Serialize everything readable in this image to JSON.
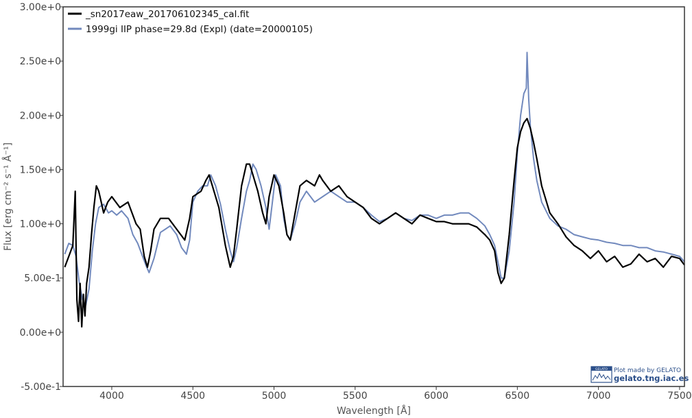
{
  "chart_data": {
    "type": "line",
    "xlabel": "Wavelength [Å]",
    "ylabel": "Flux [erg cm⁻² s⁻¹ Å⁻¹]",
    "xlim": [
      3700,
      7530
    ],
    "ylim": [
      -0.5,
      3.0
    ],
    "x_ticks": [
      4000,
      4500,
      5000,
      5500,
      6000,
      6500,
      7000,
      7500
    ],
    "x_tick_labels": [
      "4000",
      "4500",
      "5000",
      "5500",
      "6000",
      "6500",
      "7000",
      "7500"
    ],
    "y_ticks": [
      -0.5,
      0.0,
      0.5,
      1.0,
      1.5,
      2.0,
      2.5,
      3.0
    ],
    "y_tick_labels": [
      "-5.00e-1",
      "0.00e+0",
      "5.00e-1",
      "1.00e+0",
      "1.50e+0",
      "2.00e+0",
      "2.50e+0",
      "3.00e+0"
    ],
    "grid": false,
    "legend_position": "top-left",
    "series": [
      {
        "name": "_sn2017eaw_201706102345_cal.fit",
        "color": "#000000",
        "x": [
          3710,
          3735,
          3760,
          3775,
          3785,
          3795,
          3805,
          3815,
          3825,
          3835,
          3845,
          3860,
          3875,
          3890,
          3905,
          3920,
          3935,
          3950,
          3975,
          4000,
          4050,
          4100,
          4150,
          4175,
          4200,
          4220,
          4240,
          4260,
          4300,
          4350,
          4400,
          4450,
          4480,
          4500,
          4550,
          4580,
          4600,
          4630,
          4660,
          4700,
          4730,
          4750,
          4770,
          4800,
          4830,
          4850,
          4870,
          4900,
          4930,
          4950,
          4970,
          5000,
          5030,
          5060,
          5080,
          5100,
          5130,
          5160,
          5200,
          5250,
          5280,
          5300,
          5350,
          5400,
          5450,
          5500,
          5550,
          5600,
          5650,
          5700,
          5750,
          5800,
          5850,
          5900,
          5950,
          6000,
          6050,
          6100,
          6150,
          6200,
          6250,
          6300,
          6330,
          6360,
          6380,
          6400,
          6420,
          6450,
          6480,
          6500,
          6520,
          6540,
          6560,
          6580,
          6600,
          6620,
          6650,
          6700,
          6750,
          6800,
          6850,
          6900,
          6950,
          7000,
          7050,
          7100,
          7150,
          7200,
          7250,
          7300,
          7350,
          7400,
          7450,
          7500,
          7530
        ],
        "y": [
          0.6,
          0.7,
          0.8,
          1.3,
          0.3,
          0.1,
          0.45,
          0.05,
          0.35,
          0.15,
          0.45,
          0.6,
          0.9,
          1.15,
          1.35,
          1.3,
          1.2,
          1.1,
          1.2,
          1.25,
          1.15,
          1.2,
          1.0,
          0.95,
          0.7,
          0.6,
          0.75,
          0.95,
          1.05,
          1.05,
          0.95,
          0.85,
          1.05,
          1.25,
          1.3,
          1.4,
          1.45,
          1.3,
          1.15,
          0.8,
          0.6,
          0.7,
          0.95,
          1.35,
          1.55,
          1.55,
          1.45,
          1.3,
          1.1,
          1.0,
          1.25,
          1.45,
          1.35,
          1.1,
          0.9,
          0.85,
          1.1,
          1.35,
          1.4,
          1.35,
          1.45,
          1.4,
          1.3,
          1.35,
          1.25,
          1.2,
          1.15,
          1.05,
          1.0,
          1.05,
          1.1,
          1.05,
          1.0,
          1.08,
          1.05,
          1.02,
          1.02,
          1.0,
          1.0,
          1.0,
          0.97,
          0.9,
          0.85,
          0.75,
          0.55,
          0.45,
          0.5,
          0.9,
          1.4,
          1.7,
          1.85,
          1.93,
          1.97,
          1.88,
          1.75,
          1.6,
          1.35,
          1.1,
          1.0,
          0.88,
          0.8,
          0.75,
          0.68,
          0.75,
          0.65,
          0.7,
          0.6,
          0.63,
          0.72,
          0.65,
          0.68,
          0.6,
          0.7,
          0.68,
          0.62
        ]
      },
      {
        "name": "1999gi  IIP  phase=29.8d (Expl)  (date=20000105)",
        "color": "#7189bd",
        "x": [
          3710,
          3735,
          3760,
          3780,
          3800,
          3820,
          3840,
          3860,
          3880,
          3900,
          3920,
          3950,
          3980,
          4000,
          4030,
          4060,
          4100,
          4130,
          4160,
          4190,
          4210,
          4230,
          4260,
          4300,
          4330,
          4360,
          4400,
          4430,
          4460,
          4480,
          4500,
          4530,
          4560,
          4590,
          4610,
          4640,
          4670,
          4700,
          4730,
          4750,
          4770,
          4800,
          4830,
          4850,
          4870,
          4890,
          4920,
          4950,
          4970,
          4990,
          5010,
          5040,
          5060,
          5080,
          5100,
          5130,
          5160,
          5200,
          5250,
          5300,
          5350,
          5400,
          5450,
          5500,
          5550,
          5600,
          5650,
          5700,
          5750,
          5800,
          5850,
          5900,
          5950,
          6000,
          6050,
          6100,
          6150,
          6200,
          6250,
          6300,
          6330,
          6360,
          6380,
          6400,
          6420,
          6450,
          6480,
          6500,
          6520,
          6540,
          6555,
          6560,
          6570,
          6580,
          6600,
          6620,
          6650,
          6700,
          6750,
          6800,
          6850,
          6900,
          6950,
          7000,
          7050,
          7100,
          7150,
          7200,
          7250,
          7300,
          7350,
          7400,
          7450,
          7500,
          7530
        ],
        "y": [
          0.72,
          0.82,
          0.8,
          0.7,
          0.45,
          0.3,
          0.25,
          0.4,
          0.75,
          1.0,
          1.15,
          1.18,
          1.1,
          1.12,
          1.08,
          1.12,
          1.05,
          0.9,
          0.82,
          0.7,
          0.62,
          0.55,
          0.68,
          0.92,
          0.95,
          0.98,
          0.9,
          0.78,
          0.72,
          0.85,
          1.2,
          1.3,
          1.35,
          1.35,
          1.45,
          1.35,
          1.18,
          0.95,
          0.75,
          0.65,
          0.78,
          1.05,
          1.3,
          1.4,
          1.55,
          1.5,
          1.35,
          1.15,
          0.95,
          1.2,
          1.45,
          1.35,
          1.05,
          0.9,
          0.85,
          1.0,
          1.2,
          1.3,
          1.2,
          1.25,
          1.3,
          1.25,
          1.2,
          1.2,
          1.15,
          1.08,
          1.02,
          1.05,
          1.1,
          1.05,
          1.03,
          1.08,
          1.08,
          1.05,
          1.08,
          1.08,
          1.1,
          1.1,
          1.05,
          0.98,
          0.9,
          0.8,
          0.65,
          0.5,
          0.5,
          0.75,
          1.2,
          1.65,
          2.0,
          2.2,
          2.25,
          2.58,
          2.15,
          1.9,
          1.6,
          1.4,
          1.2,
          1.05,
          0.98,
          0.95,
          0.9,
          0.88,
          0.86,
          0.85,
          0.83,
          0.82,
          0.8,
          0.8,
          0.78,
          0.78,
          0.75,
          0.74,
          0.72,
          0.7,
          0.65
        ]
      }
    ],
    "credit": {
      "badge": "GELATO",
      "line1": "Plot made by GELATO",
      "line2": "gelato.tng.iac.es"
    }
  }
}
